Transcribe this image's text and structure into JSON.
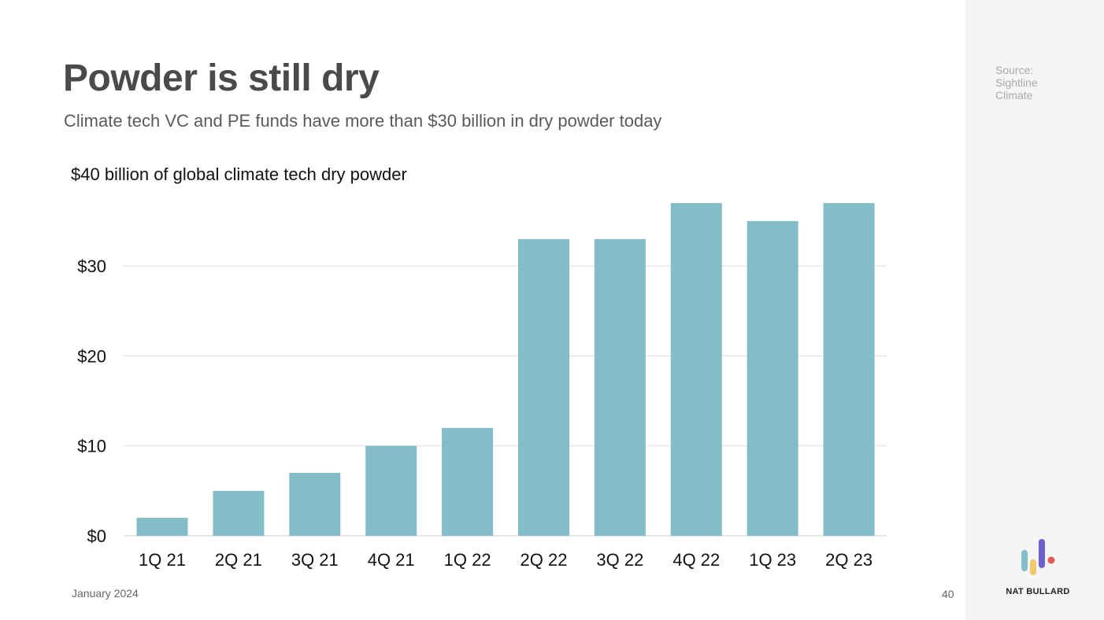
{
  "slide": {
    "title": "Powder is still dry",
    "subtitle": "Climate tech VC and PE funds have more than $30 billion in dry powder today",
    "date": "January 2024",
    "page_number": "40"
  },
  "sidebar": {
    "source_lines": [
      "Source:",
      "Sightline",
      "Climate"
    ],
    "brand": "NAT BULLARD",
    "logo_colors": [
      "#83bec8",
      "#f2c96a",
      "#6e5fd0",
      "#e05a56"
    ]
  },
  "chart_data": {
    "type": "bar",
    "title": "$40 billion of global climate tech dry powder",
    "categories": [
      "1Q 21",
      "2Q 21",
      "3Q 21",
      "4Q 21",
      "1Q 22",
      "2Q 22",
      "3Q 22",
      "4Q 22",
      "1Q 23",
      "2Q 23"
    ],
    "values": [
      2,
      5,
      7,
      10,
      12,
      33,
      33,
      37,
      35,
      37
    ],
    "ylim": [
      0,
      40
    ],
    "yticks": [
      0,
      10,
      20,
      30
    ],
    "ytick_labels": [
      "$0",
      "$10",
      "$20",
      "$30"
    ],
    "grid": true,
    "bar_color": "#83bec8",
    "xlabel": "",
    "ylabel": ""
  }
}
